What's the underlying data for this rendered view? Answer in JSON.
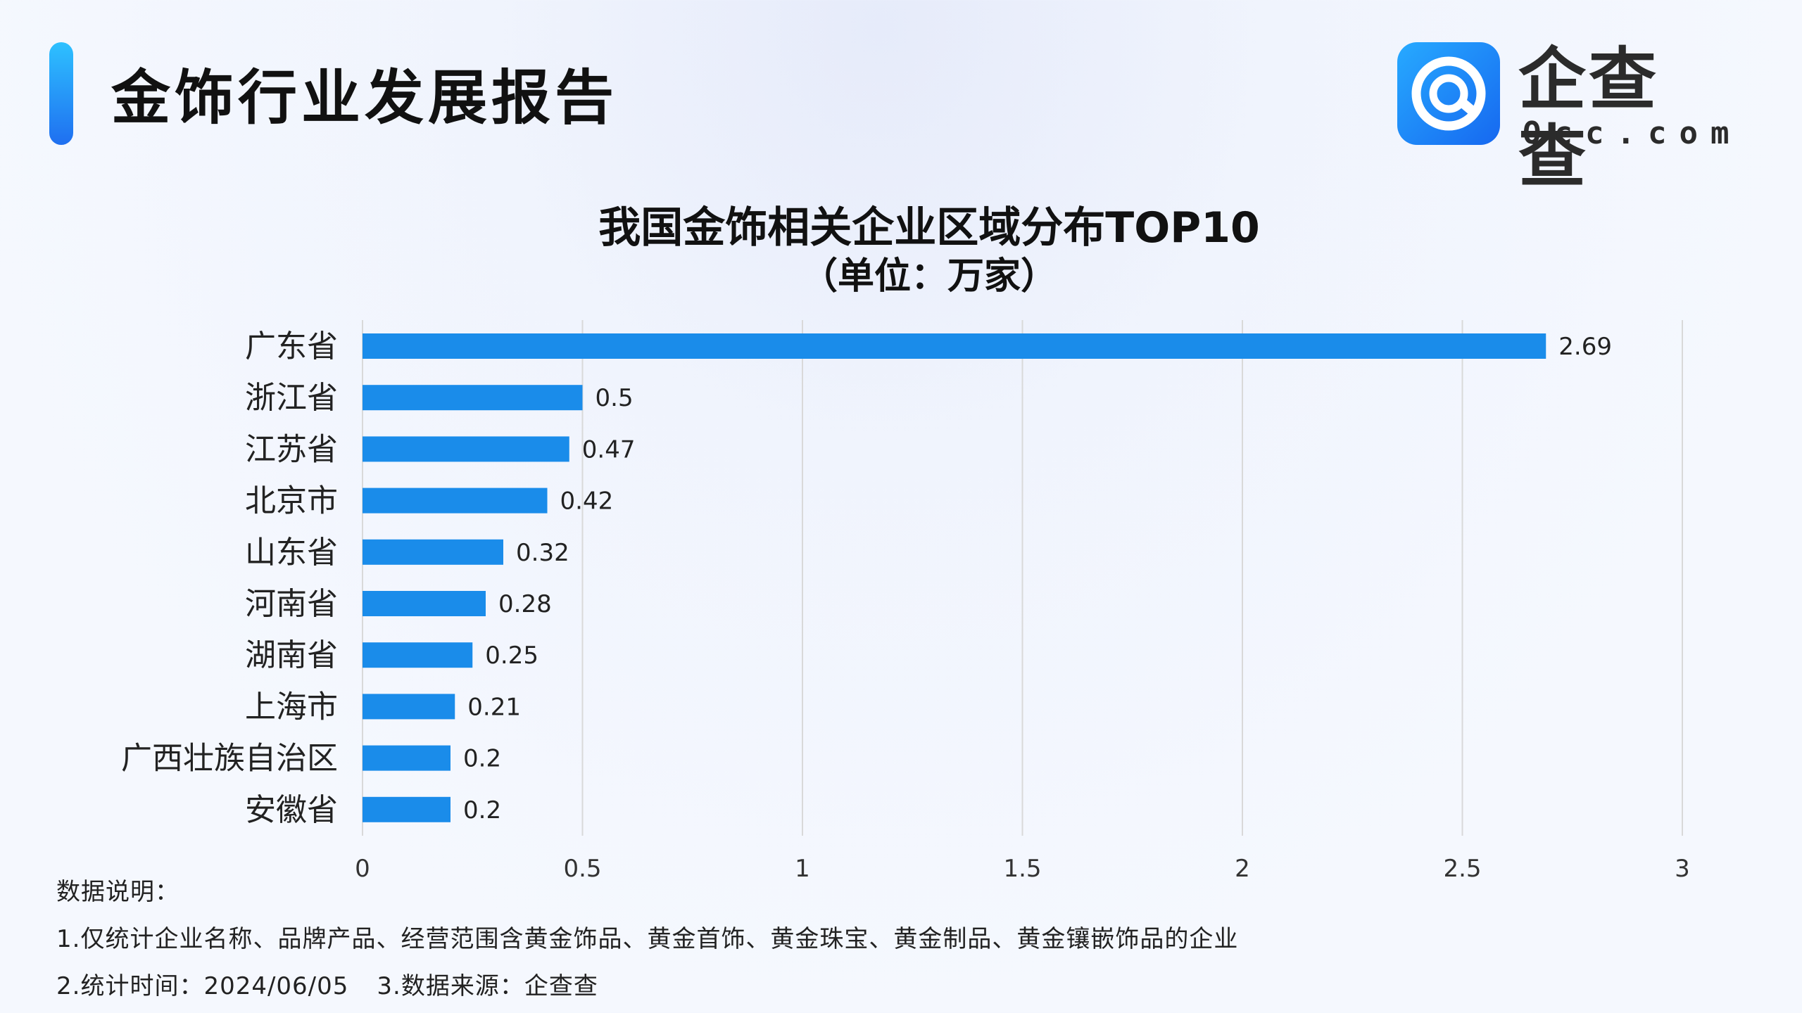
{
  "header": {
    "title": "金饰行业发展报告"
  },
  "logo": {
    "name": "企查查",
    "domain": "Qcc.com"
  },
  "colors": {
    "bar": "#1a8cea",
    "accent": "#1f6ff0",
    "grid": "#d9d9d9"
  },
  "chart_data": {
    "type": "bar",
    "orientation": "horizontal",
    "title": "我国金饰相关企业区域分布TOP10",
    "subtitle": "（单位：万家）",
    "categories": [
      "广东省",
      "浙江省",
      "江苏省",
      "北京市",
      "山东省",
      "河南省",
      "湖南省",
      "上海市",
      "广西壮族自治区",
      "安徽省"
    ],
    "values": [
      2.69,
      0.5,
      0.47,
      0.42,
      0.32,
      0.28,
      0.25,
      0.21,
      0.2,
      0.2
    ],
    "data_labels": [
      "2.69",
      "0.5",
      "0.47",
      "0.42",
      "0.32",
      "0.28",
      "0.25",
      "0.21",
      "0.2",
      "0.2"
    ],
    "xlim": [
      0,
      3
    ],
    "xticks": [
      "0",
      "0.5",
      "1",
      "1.5",
      "2",
      "2.5",
      "3"
    ],
    "grid": true,
    "legend": "none"
  },
  "notes": {
    "heading": "数据说明：",
    "line1": "1.仅统计企业名称、品牌产品、经营范围含黄金饰品、黄金首饰、黄金珠宝、黄金制品、黄金镶嵌饰品的企业",
    "line2a": "2.统计时间：2024/06/05",
    "line2b": "3.数据来源：企查查"
  }
}
